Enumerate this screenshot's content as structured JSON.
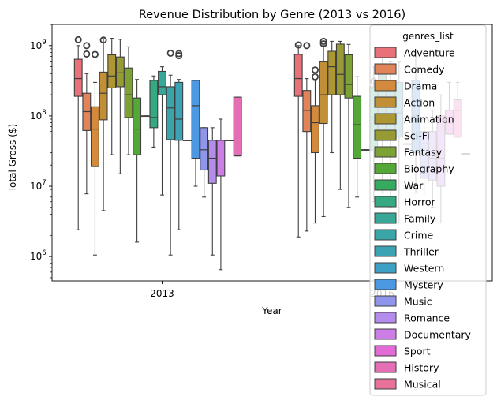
{
  "chart_data": {
    "type": "box",
    "title": "Revenue Distribution by Genre (2013 vs 2016)",
    "xlabel": "Year",
    "ylabel": "Total Gross ($)",
    "yscale": "log",
    "ylim": [
      450000,
      2000000000
    ],
    "categories": [
      "2013",
      "2016"
    ],
    "y_ticks": [
      {
        "value": 1000000,
        "base": "10",
        "exp": "6"
      },
      {
        "value": 10000000,
        "base": "10",
        "exp": "7"
      },
      {
        "value": 100000000,
        "base": "10",
        "exp": "8"
      },
      {
        "value": 1000000000,
        "base": "10",
        "exp": "9"
      }
    ],
    "legend": {
      "title": "genres_list",
      "placement": "upper right"
    },
    "series": [
      {
        "name": "Adventure",
        "color": "#e8717a",
        "stats": [
          {
            "whislo": 2400000,
            "q1": 190000000,
            "med": 340000000,
            "q3": 640000000,
            "whishi": 1000000000,
            "fliers": [
              1215000000
            ]
          },
          {
            "whislo": 1900000,
            "q1": 190000000,
            "med": 340000000,
            "q3": 750000000,
            "whishi": 1000000000,
            "fliers": [
              1020000000
            ]
          }
        ]
      },
      {
        "name": "Comedy",
        "color": "#e1845a",
        "stats": [
          {
            "whislo": 7800000,
            "q1": 62000000,
            "med": 115000000,
            "q3": 210000000,
            "whishi": 400000000,
            "fliers": [
              1000000000,
              760000000
            ]
          },
          {
            "whislo": 2300000,
            "q1": 60000000,
            "med": 120000000,
            "q3": 230000000,
            "whishi": 340000000,
            "fliers": [
              1000000000
            ]
          }
        ]
      },
      {
        "name": "Drama",
        "color": "#d38a3d",
        "stats": [
          {
            "whislo": 1050000,
            "q1": 19000000,
            "med": 65000000,
            "q3": 135000000,
            "whishi": 300000000,
            "fliers": [
              750000000
            ]
          },
          {
            "whislo": 3000000,
            "q1": 30000000,
            "med": 80000000,
            "q3": 140000000,
            "whishi": 320000000,
            "fliers": [
              450000000,
              360000000
            ]
          }
        ]
      },
      {
        "name": "Action",
        "color": "#c18f35",
        "stats": [
          {
            "whislo": 4500000,
            "q1": 88000000,
            "med": 210000000,
            "q3": 420000000,
            "whishi": 1250000000,
            "fliers": [
              1200000000
            ]
          },
          {
            "whislo": 3700000,
            "q1": 78000000,
            "med": 200000000,
            "q3": 600000000,
            "whishi": 1000000000,
            "fliers": [
              1150000000,
              1060000000
            ]
          }
        ]
      },
      {
        "name": "Animation",
        "color": "#ac9733",
        "stats": [
          {
            "whislo": 28000000,
            "q1": 250000000,
            "med": 370000000,
            "q3": 740000000,
            "whishi": 1270000000,
            "fliers": []
          },
          {
            "whislo": 30000000,
            "q1": 200000000,
            "med": 500000000,
            "q3": 830000000,
            "whishi": 1150000000,
            "fliers": []
          }
        ]
      },
      {
        "name": "Sci-Fi",
        "color": "#969c33",
        "stats": [
          {
            "whislo": 15000000,
            "q1": 260000000,
            "med": 410000000,
            "q3": 690000000,
            "whishi": 1230000000,
            "fliers": []
          },
          {
            "whislo": 9000000,
            "q1": 200000000,
            "med": 390000000,
            "q3": 1050000000,
            "whishi": 1150000000,
            "fliers": []
          }
        ]
      },
      {
        "name": "Fantasy",
        "color": "#7ba232",
        "stats": [
          {
            "whislo": 28000000,
            "q1": 95000000,
            "med": 200000000,
            "q3": 480000000,
            "whishi": 960000000,
            "fliers": []
          },
          {
            "whislo": 5000000,
            "q1": 180000000,
            "med": 280000000,
            "q3": 740000000,
            "whishi": 1040000000,
            "fliers": []
          }
        ]
      },
      {
        "name": "Biography",
        "color": "#54a838",
        "stats": [
          {
            "whislo": 1600000,
            "q1": 28000000,
            "med": 65000000,
            "q3": 180000000,
            "whishi": 330000000,
            "fliers": []
          },
          {
            "whislo": 7000000,
            "q1": 25000000,
            "med": 75000000,
            "q3": 190000000,
            "whishi": 360000000,
            "fliers": []
          }
        ]
      },
      {
        "name": "War",
        "color": "#35ab60",
        "stats": [
          {
            "whislo": 100000000,
            "q1": 100000000,
            "med": 100000000,
            "q3": 100000000,
            "whishi": 100000000,
            "fliers": []
          },
          {
            "whislo": 33000000,
            "q1": 33000000,
            "med": 33000000,
            "q3": 33000000,
            "whishi": 33000000,
            "fliers": []
          }
        ]
      },
      {
        "name": "Horror",
        "color": "#37a982",
        "stats": [
          {
            "whislo": 36000000,
            "q1": 68000000,
            "med": 95000000,
            "q3": 320000000,
            "whishi": 370000000,
            "fliers": []
          },
          {
            "whislo": 6000000,
            "q1": 32000000,
            "med": 95000000,
            "q3": 260000000,
            "whishi": 500000000,
            "fliers": [
              310000000
            ]
          }
        ]
      },
      {
        "name": "Family",
        "color": "#38a797",
        "stats": [
          {
            "whislo": 7500000,
            "q1": 200000000,
            "med": 260000000,
            "q3": 430000000,
            "whishi": 500000000,
            "fliers": []
          },
          {
            "whislo": 8000000,
            "q1": 45000000,
            "med": 120000000,
            "q3": 480000000,
            "whishi": 800000000,
            "fliers": []
          }
        ]
      },
      {
        "name": "Crime",
        "color": "#3aa5a6",
        "stats": [
          {
            "whislo": 1050000,
            "q1": 46000000,
            "med": 130000000,
            "q3": 260000000,
            "whishi": 380000000,
            "fliers": [
              780000000
            ]
          },
          {
            "whislo": 5000000,
            "q1": 45000000,
            "med": 100000000,
            "q3": 260000000,
            "whishi": 600000000,
            "fliers": []
          }
        ]
      },
      {
        "name": "Thriller",
        "color": "#3ca3b4",
        "stats": [
          {
            "whislo": 2400000,
            "q1": 45000000,
            "med": 90000000,
            "q3": 300000000,
            "whishi": 330000000,
            "fliers": [
              770000000,
              720000000
            ]
          },
          {
            "whislo": 3000000,
            "q1": 50000000,
            "med": 110000000,
            "q3": 300000000,
            "whishi": 600000000,
            "fliers": []
          }
        ]
      },
      {
        "name": "Western",
        "color": "#3fa0c5",
        "stats": [
          {
            "whislo": 45000000,
            "q1": 45000000,
            "med": 45000000,
            "q3": 45000000,
            "whishi": 45000000,
            "fliers": []
          },
          {
            "whislo": 40000000,
            "q1": 40000000,
            "med": 40000000,
            "q3": 40000000,
            "whishi": 40000000,
            "fliers": []
          }
        ]
      },
      {
        "name": "Mystery",
        "color": "#4d98e3",
        "stats": [
          {
            "whislo": 10000000,
            "q1": 25000000,
            "med": 140000000,
            "q3": 320000000,
            "whishi": 320000000,
            "fliers": []
          },
          {
            "whislo": 8000000,
            "q1": 30000000,
            "med": 100000000,
            "q3": 320000000,
            "whishi": 700000000,
            "fliers": []
          }
        ]
      },
      {
        "name": "Music",
        "color": "#8f95eb",
        "stats": [
          {
            "whislo": 7000000,
            "q1": 17000000,
            "med": 33000000,
            "q3": 68000000,
            "whishi": 68000000,
            "fliers": []
          },
          {
            "whislo": 8000000,
            "q1": 13000000,
            "med": 40000000,
            "q3": 60000000,
            "whishi": 90000000,
            "fliers": []
          }
        ]
      },
      {
        "name": "Romance",
        "color": "#b48ceb",
        "stats": [
          {
            "whislo": 1050000,
            "q1": 11000000,
            "med": 25000000,
            "q3": 45000000,
            "whishi": 68000000,
            "fliers": []
          },
          {
            "whislo": 5000000,
            "q1": 12000000,
            "med": 25000000,
            "q3": 60000000,
            "whishi": 120000000,
            "fliers": []
          }
        ]
      },
      {
        "name": "Documentary",
        "color": "#cd7de6",
        "stats": [
          {
            "whislo": 650000,
            "q1": 14000000,
            "med": 45000000,
            "q3": 45000000,
            "whishi": 90000000,
            "fliers": []
          },
          {
            "whislo": 3000000,
            "q1": 10000000,
            "med": 25000000,
            "q3": 100000000,
            "whishi": 200000000,
            "fliers": []
          }
        ]
      },
      {
        "name": "Sport",
        "color": "#e36bd6",
        "stats": [
          {
            "whislo": 45000000,
            "q1": 45000000,
            "med": 45000000,
            "q3": 45000000,
            "whishi": 45000000,
            "fliers": []
          },
          {
            "whislo": 55000000,
            "q1": 55000000,
            "med": 80000000,
            "q3": 120000000,
            "whishi": 300000000,
            "fliers": []
          }
        ]
      },
      {
        "name": "History",
        "color": "#e56fb5",
        "stats": [
          {
            "whislo": 27000000,
            "q1": 27000000,
            "med": 27000000,
            "q3": 185000000,
            "whishi": 185000000,
            "fliers": []
          },
          {
            "whislo": 50000000,
            "q1": 50000000,
            "med": 120000000,
            "q3": 170000000,
            "whishi": 300000000,
            "fliers": []
          }
        ]
      },
      {
        "name": "Musical",
        "color": "#e7739a",
        "stats": [
          {
            "whislo": null,
            "q1": null,
            "med": null,
            "q3": null,
            "whishi": null,
            "fliers": []
          },
          {
            "whislo": 29000000,
            "q1": 29000000,
            "med": 29000000,
            "q3": 29000000,
            "whishi": 29000000,
            "fliers": []
          }
        ]
      }
    ]
  }
}
